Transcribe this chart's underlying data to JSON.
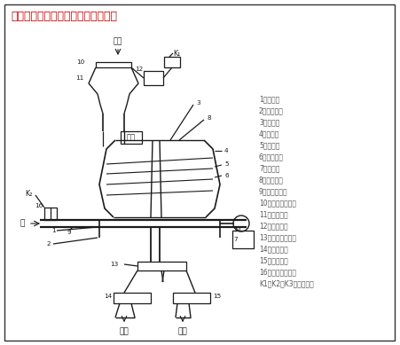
{
  "title": "昆明矿机系列离心选矿机结构示意图",
  "title_color": "#cc0000",
  "bg_color": "#ffffff",
  "line_color": "#1a1a1a",
  "legend_color": "#555555",
  "legend_items": [
    "1：转鼓；",
    "2：防护罩；",
    "3：压盖；",
    "4：主轴；",
    "5：轴承；",
    "6：皮带轮；",
    "7：电机；",
    "8：给矿嘴；",
    "9：冲洗水嘴；",
    "10：给矿分配器；",
    "11：给矿槽；",
    "12：回接槽；",
    "13：排矿分配器；",
    "14：尾矿槽；",
    "15：精矿槽；",
    "16：高压水阀门；",
    "K1，K2，K3：控制机构"
  ],
  "label_feed": "给矿",
  "label_return": "回浆",
  "label_water": "水",
  "label_tailing": "尾矿",
  "label_concentrate": "精矿"
}
